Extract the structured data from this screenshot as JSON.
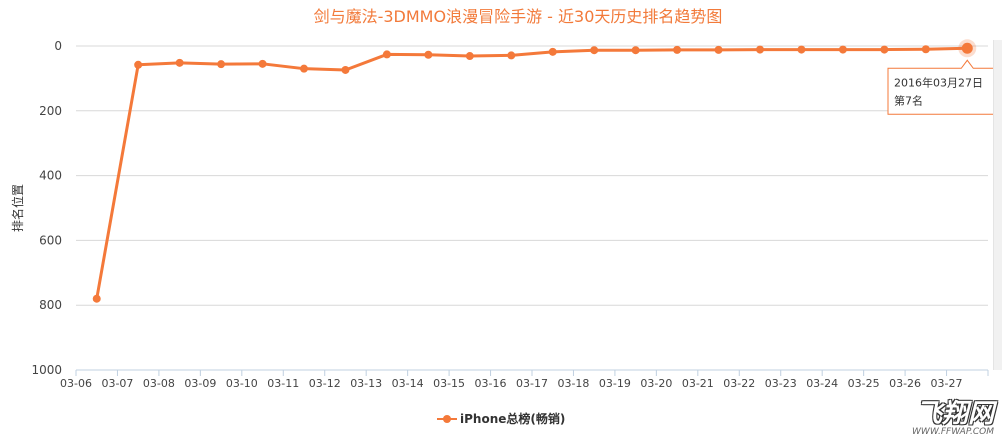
{
  "chart_data": {
    "type": "line",
    "title": "剑与魔法-3DMMO浪漫冒险手游 - 近30天历史排名趋势图",
    "xlabel": "",
    "ylabel": "排名位置",
    "y_reversed": true,
    "ylim": [
      0,
      1000
    ],
    "yticks": [
      "0",
      "200",
      "400",
      "600",
      "800",
      "1000"
    ],
    "categories": [
      "03-06",
      "03-07",
      "03-08",
      "03-09",
      "03-10",
      "03-11",
      "03-12",
      "03-13",
      "03-14",
      "03-15",
      "03-16",
      "03-17",
      "03-18",
      "03-19",
      "03-20",
      "03-21",
      "03-22",
      "03-23",
      "03-24",
      "03-25",
      "03-26",
      "03-27"
    ],
    "series": [
      {
        "name": "iPhone总榜(畅销)",
        "color": "#f4793a",
        "values": [
          780,
          58,
          52,
          56,
          55,
          70,
          74,
          26,
          27,
          31,
          29,
          18,
          13,
          13,
          12,
          12,
          11,
          11,
          11,
          11,
          10,
          7
        ]
      }
    ],
    "grid": true,
    "legend_position": "bottom-center",
    "tooltip": {
      "line1": "2016年03月27日",
      "line2": "第7名"
    }
  },
  "watermark": {
    "logo_text": "飞翔网",
    "url": "WWW.FFWAP.COM"
  }
}
